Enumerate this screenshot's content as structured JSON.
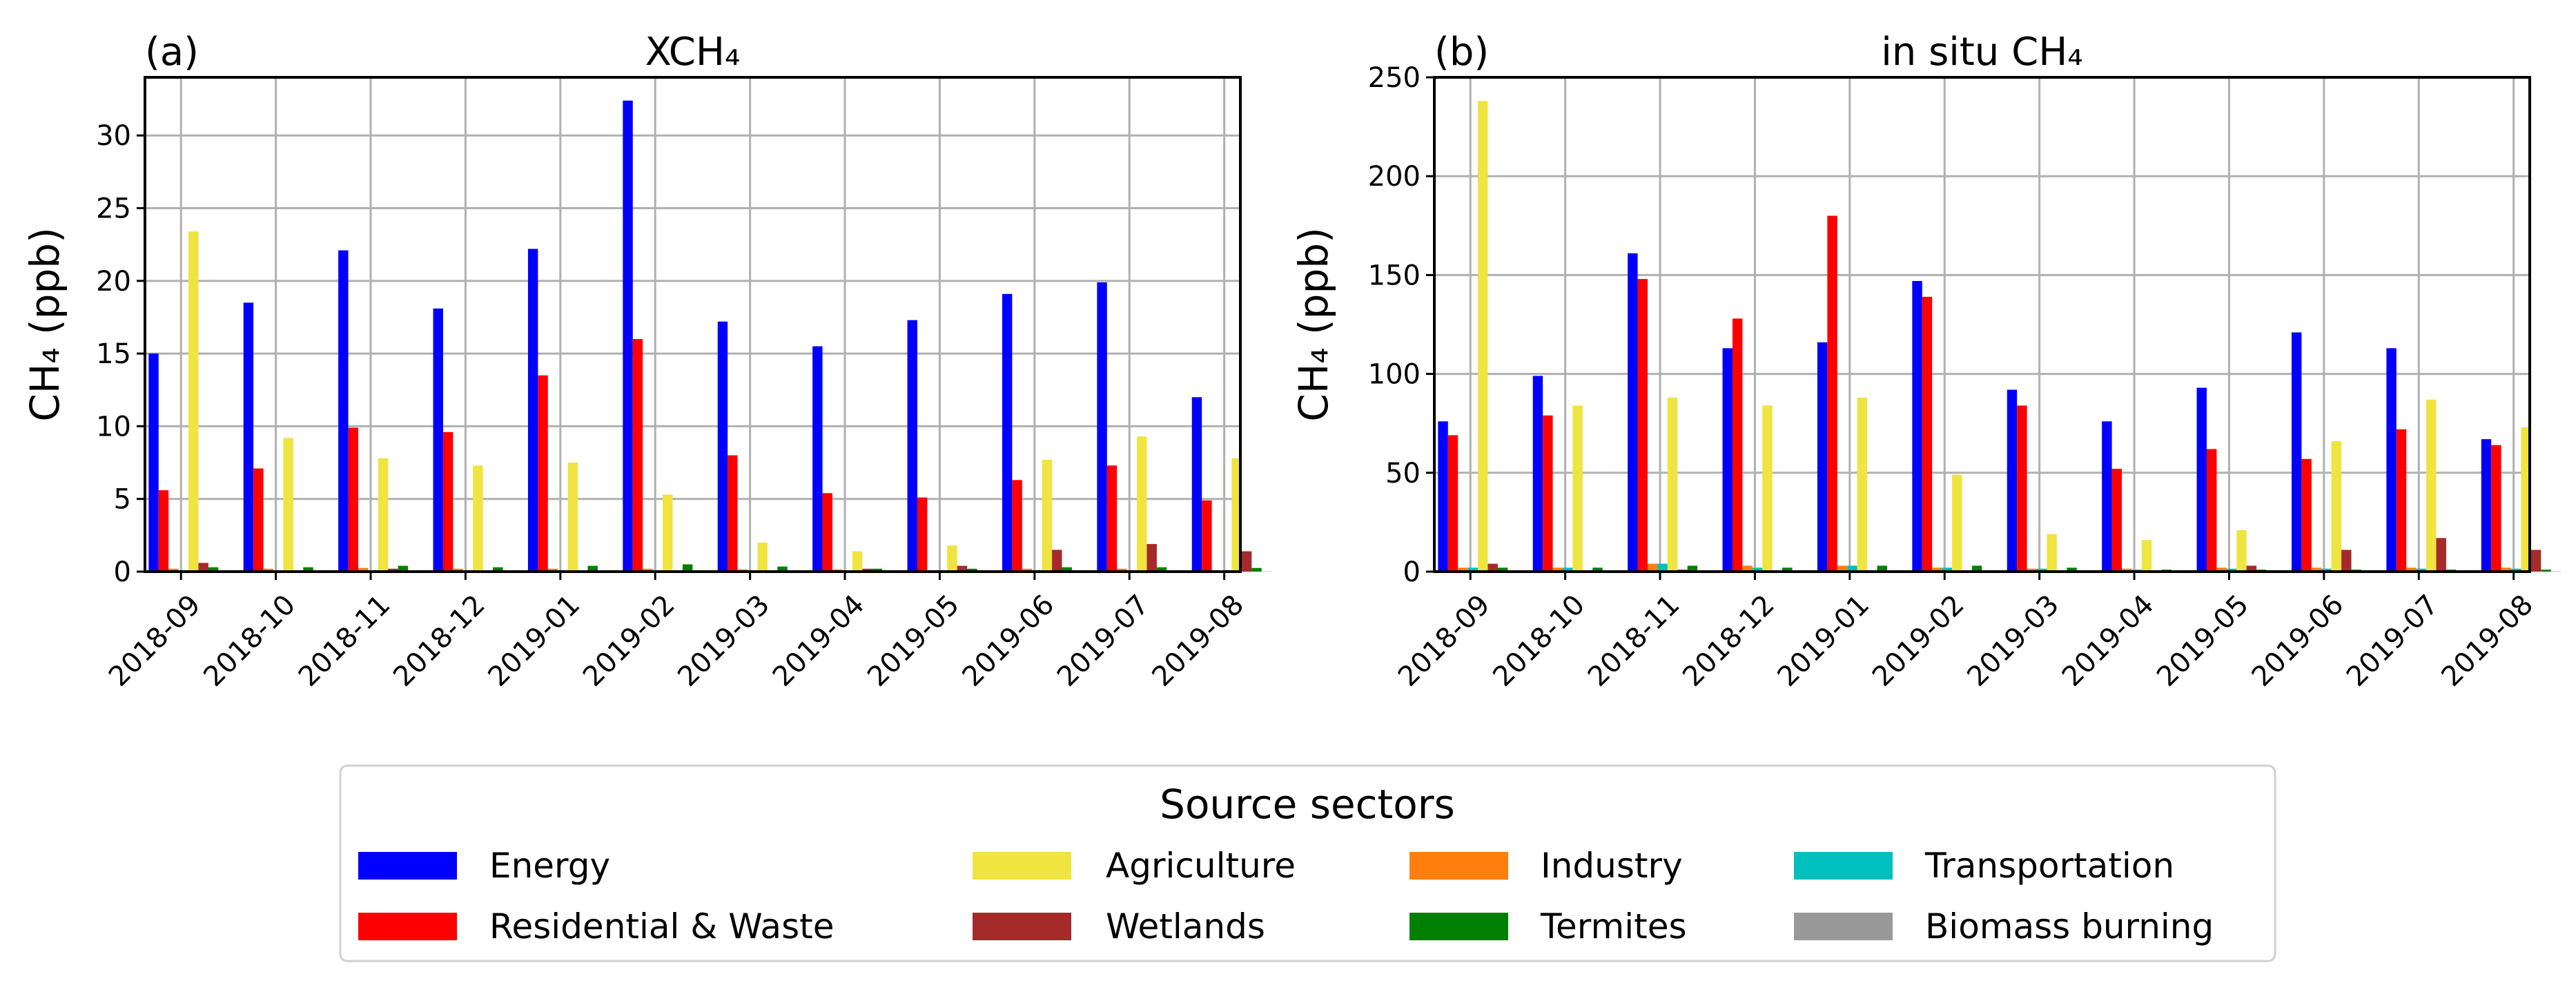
{
  "chart_data": [
    {
      "type": "bar",
      "panel_label": "(a)",
      "title": "XCH₄",
      "xlabel": "",
      "ylabel": "CH₄ (ppb)",
      "ylim": [
        0,
        34
      ],
      "yticks": [
        0,
        5,
        10,
        15,
        20,
        25,
        30
      ],
      "grid": true,
      "categories": [
        "2018-09",
        "2018-10",
        "2018-11",
        "2018-12",
        "2019-01",
        "2019-02",
        "2019-03",
        "2019-04",
        "2019-05",
        "2019-06",
        "2019-07",
        "2019-08"
      ],
      "series": [
        {
          "name": "Energy",
          "values": [
            15.0,
            18.5,
            22.1,
            18.1,
            22.2,
            32.4,
            17.2,
            15.5,
            17.3,
            19.1,
            19.9,
            12.0
          ]
        },
        {
          "name": "Residential & Waste",
          "values": [
            5.6,
            7.1,
            9.9,
            9.6,
            13.5,
            16.0,
            8.0,
            5.4,
            5.1,
            6.3,
            7.3,
            4.9
          ]
        },
        {
          "name": "Industry",
          "values": [
            0.2,
            0.2,
            0.25,
            0.2,
            0.2,
            0.2,
            0.15,
            0.15,
            0.1,
            0.2,
            0.2,
            0.1
          ]
        },
        {
          "name": "Transportation",
          "values": [
            0.1,
            0.1,
            0.1,
            0.1,
            0.1,
            0.1,
            0.1,
            0.05,
            0.05,
            0.1,
            0.1,
            0.1
          ]
        },
        {
          "name": "Agriculture",
          "values": [
            23.4,
            9.2,
            7.8,
            7.3,
            7.5,
            5.3,
            2.0,
            1.4,
            1.8,
            7.7,
            9.3,
            7.8
          ]
        },
        {
          "name": "Wetlands",
          "values": [
            0.6,
            0.05,
            0.2,
            0.05,
            0.05,
            0.05,
            0.05,
            0.2,
            0.4,
            1.5,
            1.9,
            1.4
          ]
        },
        {
          "name": "Termites",
          "values": [
            0.3,
            0.3,
            0.4,
            0.3,
            0.4,
            0.5,
            0.35,
            0.2,
            0.2,
            0.3,
            0.3,
            0.25
          ]
        },
        {
          "name": "Biomass burning",
          "values": [
            0.02,
            0.02,
            0.02,
            0.02,
            0.02,
            0.02,
            0.02,
            0.02,
            0.02,
            0.02,
            0.02,
            0.02
          ]
        }
      ]
    },
    {
      "type": "bar",
      "panel_label": "(b)",
      "title": "in situ CH₄",
      "xlabel": "",
      "ylabel": "CH₄ (ppb)",
      "ylim": [
        0,
        250
      ],
      "yticks": [
        0,
        50,
        100,
        150,
        200,
        250
      ],
      "grid": true,
      "categories": [
        "2018-09",
        "2018-10",
        "2018-11",
        "2018-12",
        "2019-01",
        "2019-02",
        "2019-03",
        "2019-04",
        "2019-05",
        "2019-06",
        "2019-07",
        "2019-08"
      ],
      "series": [
        {
          "name": "Energy",
          "values": [
            76,
            99,
            161,
            113,
            116,
            147,
            92,
            76,
            93,
            121,
            113,
            67
          ]
        },
        {
          "name": "Residential & Waste",
          "values": [
            69,
            79,
            148,
            128,
            180,
            139,
            84,
            52,
            62,
            57,
            72,
            64
          ]
        },
        {
          "name": "Industry",
          "values": [
            2,
            2,
            4,
            3,
            3,
            2,
            1.5,
            1.5,
            2,
            2,
            2,
            2
          ]
        },
        {
          "name": "Transportation",
          "values": [
            2,
            2,
            4,
            2,
            3,
            2,
            1.5,
            1,
            1.5,
            1.5,
            1.5,
            1.5
          ]
        },
        {
          "name": "Agriculture",
          "values": [
            238,
            84,
            88,
            84,
            88,
            49,
            19,
            16,
            21,
            66,
            87,
            73
          ]
        },
        {
          "name": "Wetlands",
          "values": [
            4,
            0.5,
            1,
            0.5,
            0.5,
            0.5,
            0.5,
            0.5,
            3,
            11,
            17,
            11
          ]
        },
        {
          "name": "Termites",
          "values": [
            2,
            2,
            3,
            2,
            3,
            3,
            2,
            1,
            1,
            1,
            1,
            1
          ]
        },
        {
          "name": "Biomass burning",
          "values": [
            0.2,
            0.2,
            0.2,
            0.2,
            0.2,
            0.2,
            0.2,
            0.2,
            0.2,
            0.2,
            0.2,
            0.2
          ]
        }
      ]
    }
  ],
  "legend": {
    "title": "Source sectors",
    "placement": "bottom-center",
    "entries": [
      {
        "label": "Energy",
        "color": "#0000ff"
      },
      {
        "label": "Residential & Waste",
        "color": "#ff0000"
      },
      {
        "label": "Agriculture",
        "color": "#efe440"
      },
      {
        "label": "Wetlands",
        "color": "#a52a2a"
      },
      {
        "label": "Industry",
        "color": "#ff7f0e"
      },
      {
        "label": "Termites",
        "color": "#008000"
      },
      {
        "label": "Transportation",
        "color": "#00bfbf"
      },
      {
        "label": "Biomass burning",
        "color": "#999999"
      }
    ]
  },
  "series_colors": {
    "Energy": "#0000ff",
    "Residential & Waste": "#ff0000",
    "Industry": "#ff7f0e",
    "Transportation": "#00bfbf",
    "Agriculture": "#efe440",
    "Wetlands": "#a52a2a",
    "Termites": "#008000",
    "Biomass burning": "#999999"
  }
}
